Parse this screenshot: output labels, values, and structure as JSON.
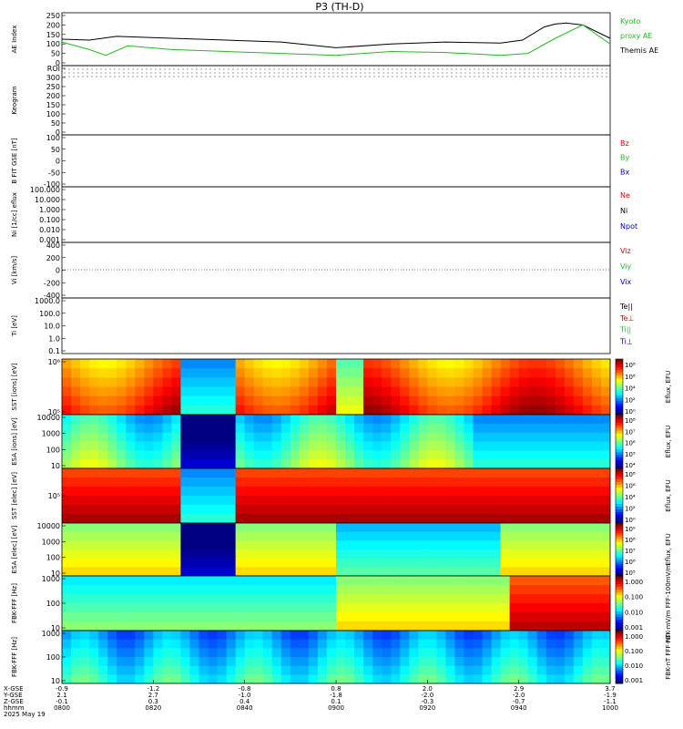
{
  "title": "P3 (TH-D)",
  "chart_data": [
    {
      "type": "line",
      "ylabel": "AE Index",
      "yticks": [
        "250",
        "200",
        "150",
        "100",
        "50",
        "0"
      ],
      "legend": [
        {
          "label": "Kyoto",
          "color": "#22bb22"
        },
        {
          "label": "proxy AE",
          "color": "#22bb22"
        },
        {
          "label": "Themis AE",
          "color": "#000000"
        }
      ],
      "series": [
        {
          "name": "Themis AE",
          "color": "#000000",
          "x": [
            0,
            0.05,
            0.1,
            0.2,
            0.3,
            0.4,
            0.45,
            0.5,
            0.6,
            0.7,
            0.8,
            0.84,
            0.88,
            0.9,
            0.92,
            0.95,
            1.0
          ],
          "values": [
            125,
            120,
            140,
            130,
            120,
            110,
            95,
            80,
            100,
            110,
            105,
            120,
            190,
            205,
            210,
            200,
            130
          ]
        },
        {
          "name": "Kyoto proxy AE",
          "color": "#22bb22",
          "x": [
            0,
            0.05,
            0.08,
            0.12,
            0.2,
            0.3,
            0.4,
            0.5,
            0.6,
            0.7,
            0.8,
            0.85,
            0.9,
            0.95,
            1.0
          ],
          "values": [
            110,
            70,
            40,
            90,
            70,
            60,
            50,
            40,
            60,
            55,
            40,
            50,
            130,
            200,
            100
          ]
        }
      ]
    },
    {
      "type": "heatmap",
      "ylabel": "Keogram",
      "yticks": [
        "ROI",
        "300",
        "250",
        "200",
        "150",
        "100",
        "50",
        "0"
      ]
    },
    {
      "type": "line",
      "ylabel": "B FIT GSE [nT]",
      "yticks": [
        "100",
        "50",
        "0",
        "-50",
        "-100"
      ],
      "legend": [
        {
          "label": "Bz",
          "color": "#dd0000"
        },
        {
          "label": "By",
          "color": "#22bb22"
        },
        {
          "label": "Bx",
          "color": "#0000cc"
        }
      ]
    },
    {
      "type": "line",
      "ylabel": "Ni [1/cc] eflux",
      "yticks": [
        "100.000",
        "10.000",
        "1.000",
        "0.100",
        "0.010",
        "0.001"
      ],
      "legend": [
        {
          "label": "Ne",
          "color": "#dd0000"
        },
        {
          "label": "Ni",
          "color": "#000000"
        },
        {
          "label": "Npot",
          "color": "#0000cc"
        }
      ]
    },
    {
      "type": "line",
      "ylabel": "Vi [km/s]",
      "yticks": [
        "400",
        "200",
        "0",
        "-200",
        "-400"
      ],
      "legend": [
        {
          "label": "Viz",
          "color": "#dd0000"
        },
        {
          "label": "Viy",
          "color": "#22bb22"
        },
        {
          "label": "Vix",
          "color": "#0000cc"
        }
      ]
    },
    {
      "type": "line",
      "ylabel": "Ti [eV]",
      "yticks": [
        "1000.0",
        "100.0",
        "10.0",
        "1.0",
        "0.1"
      ],
      "legend": [
        {
          "label": "Te||",
          "color": "#000000"
        },
        {
          "label": "Te⊥",
          "color": "#dd0000"
        },
        {
          "label": "Ti||",
          "color": "#22bb22"
        },
        {
          "label": "Ti⊥",
          "color": "#0000cc"
        }
      ]
    },
    {
      "type": "heatmap",
      "ylabel": "SST [ions] [eV]",
      "yticks": [
        "10⁶",
        "10⁵"
      ],
      "colorbar_label": "Eflux, EFU",
      "cbticks": [
        "10⁸",
        "10⁶",
        "10⁴",
        "10²",
        "10⁰"
      ]
    },
    {
      "type": "heatmap",
      "ylabel": "ESA [ions] [eV]",
      "yticks": [
        "10000",
        "1000",
        "100",
        "10"
      ],
      "colorbar_label": "Eflux, EFU",
      "cbticks": [
        "10⁸",
        "10⁷",
        "10⁶",
        "10⁵",
        "10⁴"
      ]
    },
    {
      "type": "heatmap",
      "ylabel": "SST [elec] [eV]",
      "yticks": [
        "10⁵"
      ],
      "colorbar_label": "Eflux, EFU",
      "cbticks": [
        "10⁸",
        "10⁶",
        "10⁴",
        "10²",
        "10⁰"
      ]
    },
    {
      "type": "heatmap",
      "ylabel": "ESA [elec] [eV]",
      "yticks": [
        "10000",
        "1000",
        "100",
        "10"
      ],
      "colorbar_label": "Eflux, EFU",
      "cbticks": [
        "10⁹",
        "10⁸",
        "10⁷",
        "10⁶",
        "10⁵"
      ]
    },
    {
      "type": "heatmap",
      "ylabel": "FBK-FFF [Hz]",
      "yticks": [
        "1000",
        "100",
        "10"
      ],
      "colorbar_label": "FBK-mV/m FFF-100mV/m",
      "cbticks": [
        "1.000",
        "0.100",
        "0.010",
        "0.001"
      ]
    },
    {
      "type": "heatmap",
      "ylabel": "FBK-FFF [Hz]",
      "yticks": [
        "1000",
        "100",
        "10"
      ],
      "colorbar_label": "FBK-nT FFF-nT",
      "cbticks": [
        "1.000",
        "0.100",
        "0.010",
        "0.001"
      ]
    }
  ],
  "xaxis": {
    "row_labels": [
      "X-GSE",
      "Y-GSE",
      "Z-GSE",
      "hhmm",
      "2025 May 19"
    ],
    "ticks": [
      {
        "x": "-0.9",
        "y": "2.1",
        "z": "-0.1",
        "t": "0800"
      },
      {
        "x": "-1.2",
        "y": "2.7",
        "z": "0.3",
        "t": "0820"
      },
      {
        "x": "-0.8",
        "y": "-1.0",
        "z": "0.4",
        "t": "0840"
      },
      {
        "x": "0.8",
        "y": "-1.8",
        "z": "0.1",
        "t": "0900"
      },
      {
        "x": "2.0",
        "y": "-2.0",
        "z": "-0.3",
        "t": "0920"
      },
      {
        "x": "2.9",
        "y": "-2.0",
        "z": "-0.7",
        "t": "0940"
      },
      {
        "x": "3.7",
        "y": "-1.9",
        "z": "-1.1",
        "t": "1000"
      }
    ]
  },
  "colors": {
    "red": "#dd0000",
    "green": "#22bb22",
    "blue": "#0000cc",
    "black": "#000000"
  }
}
